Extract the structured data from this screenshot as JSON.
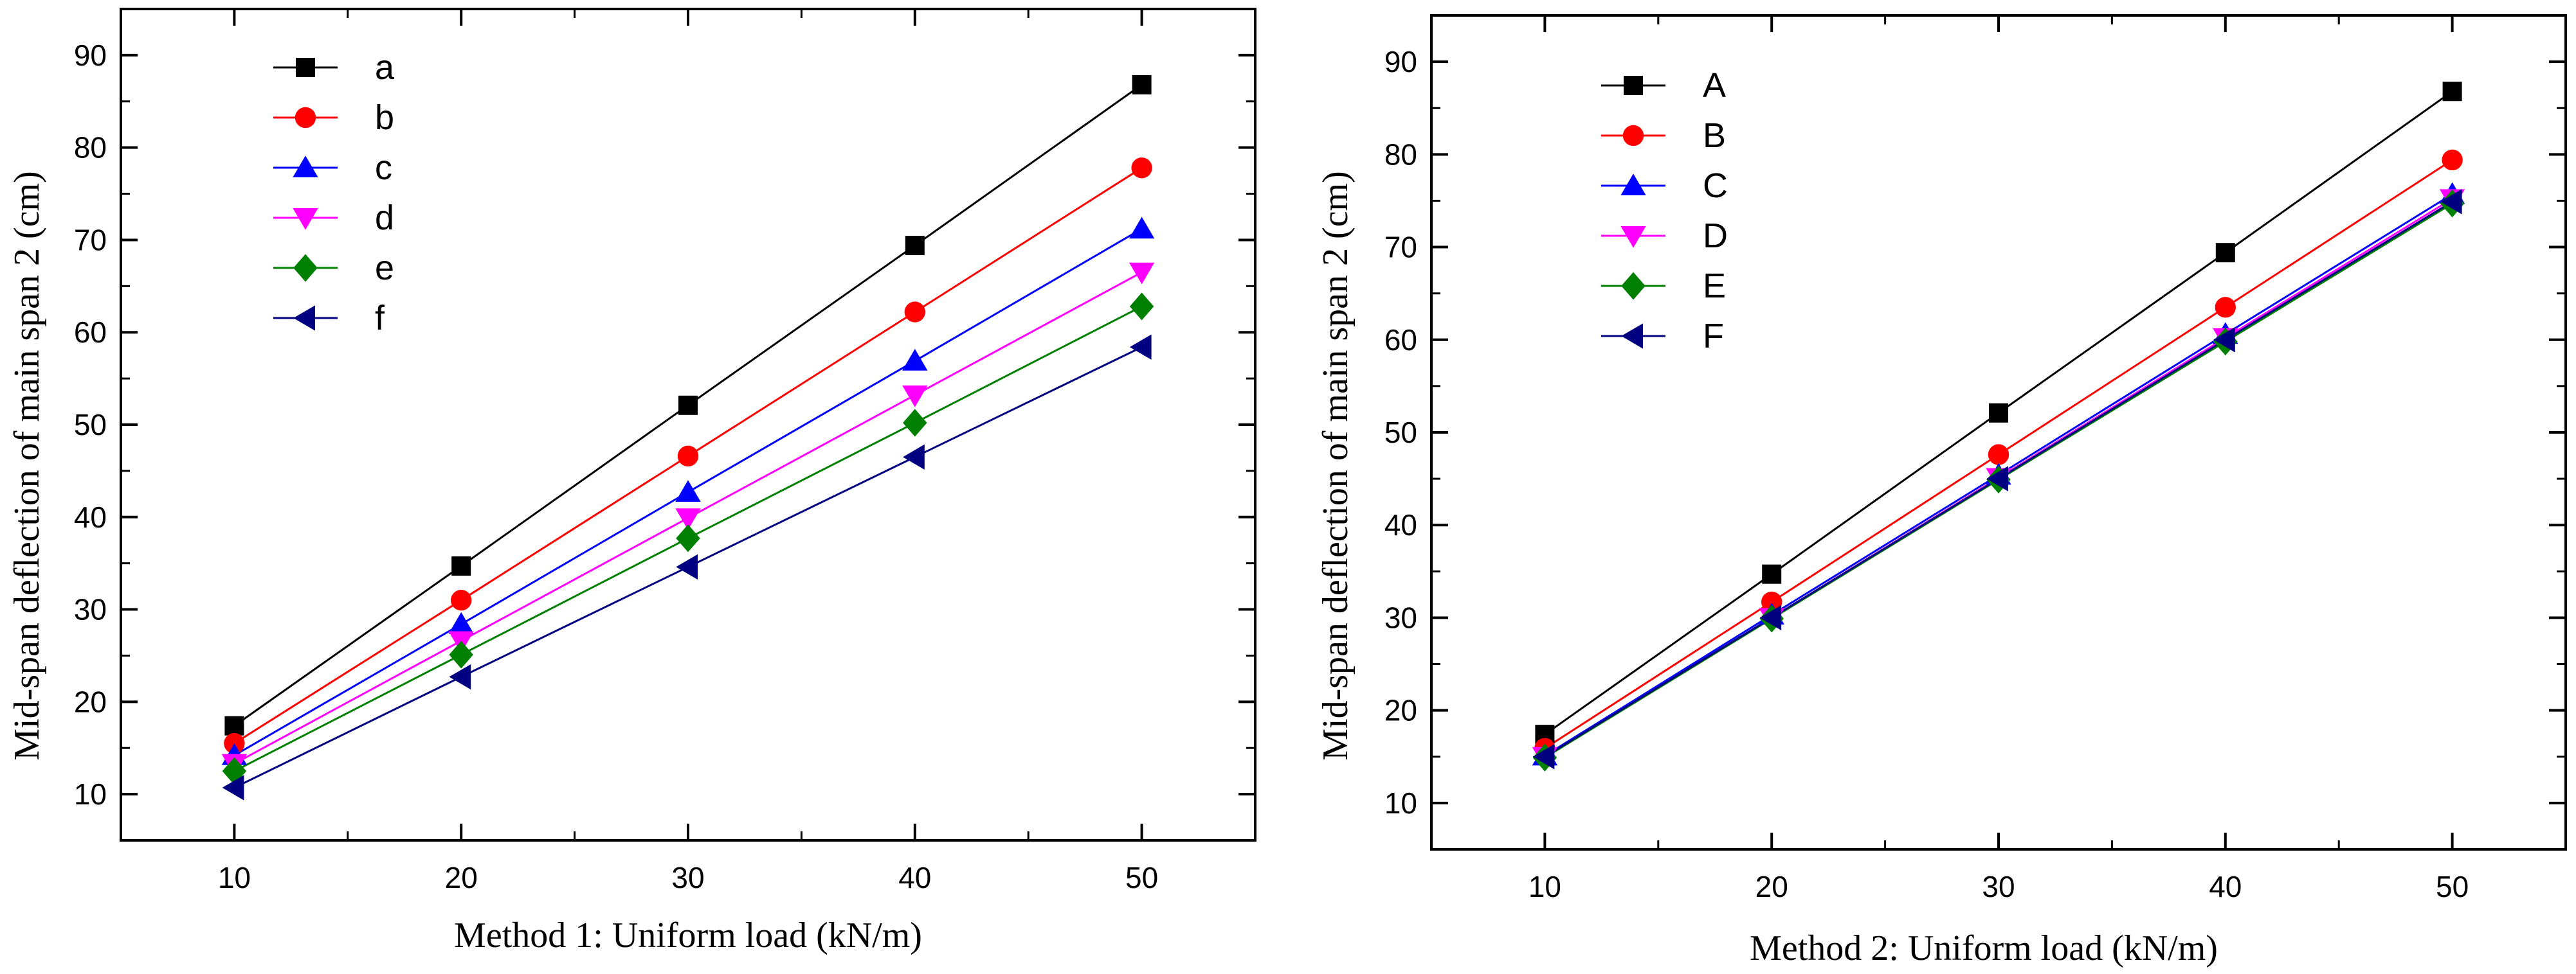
{
  "chart_data": [
    {
      "type": "line",
      "title": "",
      "xlabel": "Method 1: Uniform load (kN/m)",
      "ylabel": "Mid-span deflection of main span 2 (cm)",
      "x": [
        10,
        20,
        30,
        40,
        50
      ],
      "xlim": [
        5,
        55
      ],
      "ylim": [
        5,
        95
      ],
      "xticks": [
        10,
        20,
        30,
        40,
        50
      ],
      "yticks": [
        10,
        20,
        30,
        40,
        50,
        60,
        70,
        80,
        90
      ],
      "legend": "top-left",
      "grid": false,
      "series": [
        {
          "name": "a",
          "color": "#000000",
          "marker": "square",
          "values": [
            17.4,
            34.7,
            52.1,
            69.4,
            86.8
          ]
        },
        {
          "name": "b",
          "color": "#ff0000",
          "marker": "circle",
          "values": [
            15.5,
            31.0,
            46.6,
            62.2,
            77.8
          ]
        },
        {
          "name": "c",
          "color": "#0000ff",
          "marker": "triangle-up",
          "values": [
            14.2,
            28.4,
            42.7,
            56.9,
            71.2
          ]
        },
        {
          "name": "d",
          "color": "#ff00ff",
          "marker": "triangle-down",
          "values": [
            13.3,
            26.6,
            39.9,
            53.2,
            66.5
          ]
        },
        {
          "name": "e",
          "color": "#008000",
          "marker": "diamond",
          "values": [
            12.5,
            25.1,
            37.7,
            50.2,
            62.8
          ]
        },
        {
          "name": "f",
          "color": "#000080",
          "marker": "triangle-left",
          "values": [
            10.7,
            22.7,
            34.6,
            46.5,
            58.4
          ]
        }
      ]
    },
    {
      "type": "line",
      "title": "",
      "xlabel": "Method  2: Uniform load (kN/m)",
      "ylabel": "Mid-span deflection of main span 2 (cm)",
      "x": [
        10,
        20,
        30,
        40,
        50
      ],
      "xlim": [
        5,
        55
      ],
      "ylim": [
        5,
        95
      ],
      "xticks": [
        10,
        20,
        30,
        40,
        50
      ],
      "yticks": [
        10,
        20,
        30,
        40,
        50,
        60,
        70,
        80,
        90
      ],
      "legend": "top-left",
      "grid": false,
      "series": [
        {
          "name": "A",
          "color": "#000000",
          "marker": "square",
          "values": [
            17.4,
            34.7,
            52.1,
            69.4,
            86.8
          ]
        },
        {
          "name": "B",
          "color": "#ff0000",
          "marker": "circle",
          "values": [
            15.9,
            31.7,
            47.6,
            63.5,
            79.4
          ]
        },
        {
          "name": "C",
          "color": "#0000ff",
          "marker": "triangle-up",
          "values": [
            15.1,
            30.3,
            45.4,
            60.6,
            75.7
          ]
        },
        {
          "name": "D",
          "color": "#ff00ff",
          "marker": "triangle-down",
          "values": [
            15.0,
            30.0,
            45.1,
            60.2,
            75.2
          ]
        },
        {
          "name": "E",
          "color": "#008000",
          "marker": "diamond",
          "values": [
            14.9,
            29.9,
            44.9,
            59.8,
            74.7
          ]
        },
        {
          "name": "F",
          "color": "#000080",
          "marker": "triangle-left",
          "values": [
            15.0,
            30.0,
            45.0,
            60.0,
            74.9
          ]
        }
      ]
    }
  ]
}
